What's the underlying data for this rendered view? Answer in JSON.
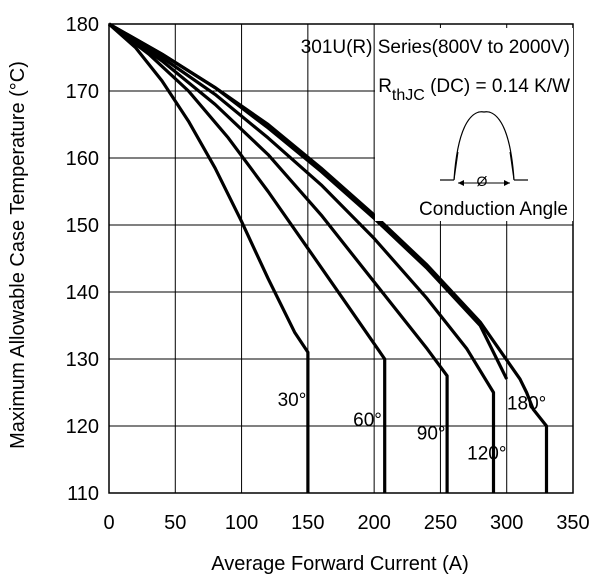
{
  "chart_data": {
    "type": "line",
    "title": "",
    "xlabel": "Average Forward Current (A)",
    "ylabel": "Maximum Allowable Case Temperature (°C)",
    "xlim": [
      0,
      350
    ],
    "ylim": [
      110,
      180
    ],
    "xticks": [
      0,
      50,
      100,
      150,
      200,
      250,
      300,
      350
    ],
    "yticks": [
      110,
      120,
      130,
      140,
      150,
      160,
      170,
      180
    ],
    "grid": true,
    "annotations": {
      "series_text": "301U(R) Series(800V to 2000V)",
      "rth_prefix": "R",
      "rth_sub": "thJC",
      "rth_suffix": " (DC) = 0.14 K/W",
      "inset_label": "Conduction Angle",
      "inset_symbol": "Ø"
    },
    "series": [
      {
        "name": "30°",
        "label": "30°",
        "points": [
          [
            0,
            180
          ],
          [
            20,
            176.5
          ],
          [
            40,
            171.5
          ],
          [
            60,
            165.5
          ],
          [
            80,
            158.5
          ],
          [
            100,
            150.5
          ],
          [
            120,
            142
          ],
          [
            140,
            134
          ],
          [
            150,
            131
          ],
          [
            150,
            110
          ]
        ]
      },
      {
        "name": "60°",
        "label": "60°",
        "points": [
          [
            0,
            180
          ],
          [
            30,
            175.5
          ],
          [
            60,
            170
          ],
          [
            90,
            163
          ],
          [
            120,
            155
          ],
          [
            150,
            146.5
          ],
          [
            180,
            138
          ],
          [
            208,
            130
          ],
          [
            208,
            110
          ]
        ]
      },
      {
        "name": "90°",
        "label": "90°",
        "points": [
          [
            0,
            180
          ],
          [
            40,
            174.5
          ],
          [
            80,
            168
          ],
          [
            120,
            160.5
          ],
          [
            160,
            151.5
          ],
          [
            200,
            141.5
          ],
          [
            240,
            131.5
          ],
          [
            255,
            127.5
          ],
          [
            255,
            110
          ]
        ]
      },
      {
        "name": "120°",
        "label": "120°",
        "points": [
          [
            0,
            180
          ],
          [
            40,
            175
          ],
          [
            80,
            169.5
          ],
          [
            120,
            163
          ],
          [
            160,
            156
          ],
          [
            200,
            148
          ],
          [
            240,
            139
          ],
          [
            270,
            131.5
          ],
          [
            290,
            125
          ],
          [
            290,
            110
          ]
        ]
      },
      {
        "name": "180°",
        "label": "180°",
        "points": [
          [
            0,
            180
          ],
          [
            40,
            175.5
          ],
          [
            80,
            170.5
          ],
          [
            120,
            164.5
          ],
          [
            160,
            158
          ],
          [
            200,
            151
          ],
          [
            240,
            143.5
          ],
          [
            280,
            135
          ],
          [
            300,
            127
          ]
        ]
      },
      {
        "name": "DC",
        "label": "",
        "points": [
          [
            0,
            180
          ],
          [
            40,
            175.5
          ],
          [
            80,
            170.5
          ],
          [
            120,
            165
          ],
          [
            160,
            158.5
          ],
          [
            200,
            151.5
          ],
          [
            240,
            144
          ],
          [
            280,
            135.5
          ],
          [
            310,
            127
          ],
          [
            315,
            125
          ],
          [
            320,
            122.5
          ],
          [
            330,
            120
          ],
          [
            330,
            110
          ]
        ]
      }
    ]
  }
}
